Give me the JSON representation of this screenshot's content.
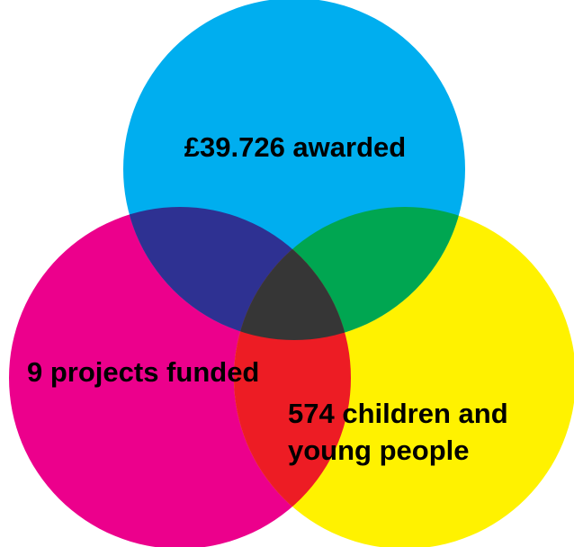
{
  "venn": {
    "sets": [
      {
        "id": "top",
        "label_lines": [
          "£39.726 awarded"
        ],
        "color": "#00AEEF"
      },
      {
        "id": "left",
        "label_lines": [
          "9 projects funded"
        ],
        "color": "#EC008C"
      },
      {
        "id": "right",
        "label_lines": [
          "574 children and",
          "young people"
        ],
        "color": "#FFF200"
      }
    ],
    "overlap_colors": {
      "top_left": "#2E3192",
      "top_right": "#00A651",
      "left_right": "#ED1C24",
      "all": "#363636"
    }
  }
}
